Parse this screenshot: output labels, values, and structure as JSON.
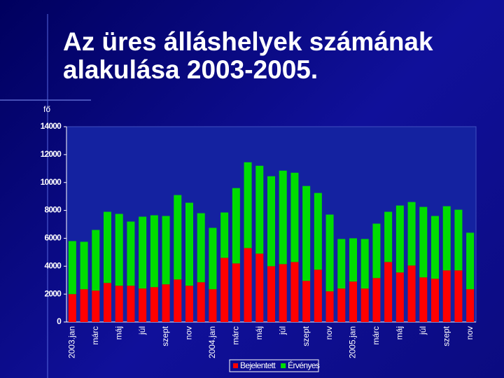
{
  "chart_data": {
    "type": "bar",
    "stacked": true,
    "title": "Az üres álláshelyek számának alakulása 2003-2005.",
    "y_label": "fő",
    "categories": [
      "2003.jan",
      null,
      "márc",
      null,
      "máj",
      null,
      "júl",
      null,
      "szept",
      null,
      "nov",
      null,
      "2004.jan",
      null,
      "márc",
      null,
      "máj",
      null,
      "júl",
      null,
      "szept",
      null,
      "nov",
      null,
      "2005.jan",
      null,
      "márc",
      null,
      "máj",
      null,
      "júl",
      null,
      "szept",
      null,
      "nov"
    ],
    "series": [
      {
        "name": "Bejelentett",
        "color": "#ff0000",
        "values": [
          2000,
          2350,
          2250,
          2800,
          2600,
          2600,
          2400,
          2500,
          2700,
          3050,
          2600,
          2850,
          2350,
          4600,
          4200,
          5300,
          4900,
          4000,
          4150,
          4300,
          2950,
          3750,
          2200,
          2400,
          2900,
          2400,
          3150,
          4300,
          3550,
          4050,
          3200,
          3100,
          3700,
          3700,
          2350
        ]
      },
      {
        "name": "Érvényes",
        "color": "#00dd00",
        "values": [
          3800,
          3400,
          4350,
          5100,
          5150,
          4600,
          5150,
          5150,
          4900,
          6050,
          5950,
          4950,
          4400,
          3250,
          5400,
          6150,
          6300,
          6450,
          6700,
          6400,
          6800,
          5500,
          5500,
          3550,
          3100,
          3550,
          3900,
          3600,
          4800,
          4550,
          5050,
          4500,
          4600,
          4350,
          4050
        ]
      }
    ],
    "ylim": [
      0,
      14000
    ],
    "yticks": [
      0,
      2000,
      4000,
      6000,
      8000,
      10000,
      12000,
      14000
    ],
    "grid": false,
    "legend": "bottom"
  }
}
